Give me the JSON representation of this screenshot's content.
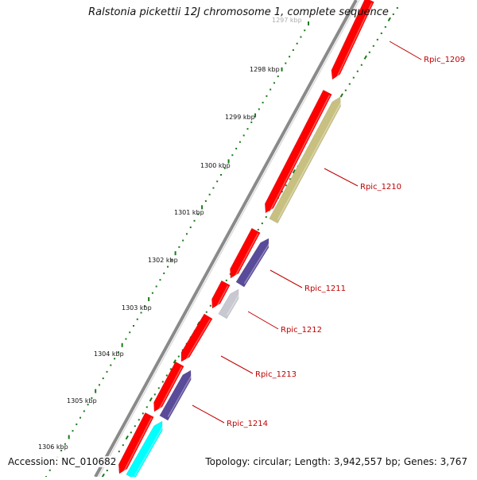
{
  "title": "Ralstonia pickettii 12J chromosome 1, complete sequence",
  "accession": "Accession: NC_010682",
  "topology": "Topology: circular; Length: 3,942,557 bp; Genes: 3,767",
  "ticks": [
    {
      "label": "1297 kbp"
    },
    {
      "label": "1298 kbp"
    },
    {
      "label": "1299 kbp"
    },
    {
      "label": "1300 kbp"
    },
    {
      "label": "1301 kbp"
    },
    {
      "label": "1302 kbp"
    },
    {
      "label": "1303 kbp"
    },
    {
      "label": "1304 kbp"
    },
    {
      "label": "1305 kbp"
    },
    {
      "label": "1306 kbp"
    }
  ],
  "gene_labels": [
    {
      "label": "Rpic_1209"
    },
    {
      "label": "Rpic_1210"
    },
    {
      "label": "Rpic_1211"
    },
    {
      "label": "Rpic_1212"
    },
    {
      "label": "Rpic_1213"
    },
    {
      "label": "Rpic_1214"
    }
  ],
  "colors": {
    "cds": "#ff0000",
    "backbone": "#888888",
    "gc_skew_dots": "#1a7a1a",
    "rpic_1210": "#c8c080",
    "rpic_1211": "#5a4a9a",
    "rpic_1212": "#c8c8d0",
    "rpic_1214": "#5a4a9a",
    "cyan_feature": "#00ffff",
    "label_text": "#c00000"
  }
}
